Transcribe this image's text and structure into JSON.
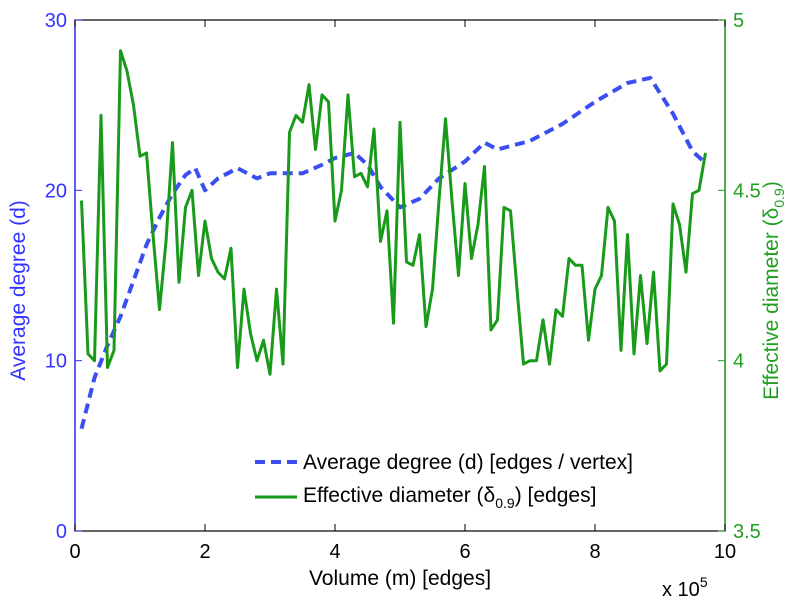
{
  "colors": {
    "left_axis": "#3333ff",
    "right_axis": "#22a022",
    "degree_line": "#3b4ef0",
    "diameter_line": "#1a9a1a",
    "frame": "#000000"
  },
  "chart_data": {
    "type": "line",
    "title": "",
    "xlabel": "Volume (m) [edges]",
    "x_multiplier": "x 10",
    "x_multiplier_exp": "5",
    "xlim": [
      0,
      10
    ],
    "x_ticks": [
      0,
      2,
      4,
      6,
      8,
      10
    ],
    "x_tick_labels": [
      "0",
      "2",
      "4",
      "6",
      "8",
      "10"
    ],
    "left_axis": {
      "label": "Average degree (d)",
      "ylim": [
        0,
        30
      ],
      "ticks": [
        0,
        10,
        20,
        30
      ],
      "tick_labels": [
        "0",
        "10",
        "20",
        "30"
      ]
    },
    "right_axis": {
      "label_main": "Effective diameter (δ",
      "label_sub": "0.9",
      "label_end": ")",
      "ylim": [
        3.5,
        5
      ],
      "ticks": [
        3.5,
        4,
        4.5,
        5
      ],
      "tick_labels": [
        "3.5",
        "4",
        "4.5",
        "5"
      ]
    },
    "legend": {
      "placement": "bottom-right",
      "entries": [
        {
          "main": "Average degree (d) [edges / vertex]",
          "sub": "",
          "tail": ""
        },
        {
          "main": "Effective diameter (δ",
          "sub": "0.9",
          "tail": ") [edges]"
        }
      ]
    },
    "series": [
      {
        "name": "Average degree (d) [edges / vertex]",
        "axis": "left",
        "style": "dashed",
        "x": [
          0.1,
          0.3,
          0.5,
          0.7,
          0.9,
          1.1,
          1.3,
          1.5,
          1.7,
          1.85,
          2.0,
          2.2,
          2.5,
          2.8,
          3.0,
          3.2,
          3.5,
          3.8,
          4.0,
          4.3,
          4.5,
          4.7,
          5.0,
          5.3,
          5.6,
          6.0,
          6.3,
          6.5,
          7.0,
          7.5,
          8.0,
          8.5,
          8.85,
          9.2,
          9.5,
          9.7
        ],
        "values": [
          6.0,
          9.0,
          10.9,
          12.6,
          14.7,
          16.8,
          18.4,
          19.8,
          20.9,
          21.3,
          20.0,
          20.7,
          21.3,
          20.7,
          21.0,
          21.0,
          21.0,
          21.5,
          21.9,
          22.2,
          21.5,
          20.2,
          19.0,
          19.5,
          20.7,
          21.7,
          22.8,
          22.4,
          22.9,
          23.9,
          25.2,
          26.3,
          26.6,
          24.5,
          22.3,
          21.6
        ]
      },
      {
        "name": "Effective diameter (δ0.9) [edges]",
        "axis": "right",
        "style": "solid",
        "x": [
          0.1,
          0.2,
          0.3,
          0.4,
          0.5,
          0.6,
          0.7,
          0.8,
          0.9,
          1.0,
          1.1,
          1.2,
          1.3,
          1.4,
          1.5,
          1.6,
          1.7,
          1.8,
          1.9,
          2.0,
          2.1,
          2.2,
          2.3,
          2.4,
          2.5,
          2.6,
          2.7,
          2.8,
          2.9,
          3.0,
          3.1,
          3.2,
          3.3,
          3.4,
          3.5,
          3.6,
          3.7,
          3.8,
          3.9,
          4.0,
          4.1,
          4.2,
          4.3,
          4.4,
          4.5,
          4.6,
          4.7,
          4.8,
          4.9,
          5.0,
          5.1,
          5.2,
          5.3,
          5.4,
          5.5,
          5.6,
          5.7,
          5.8,
          5.9,
          6.0,
          6.1,
          6.2,
          6.3,
          6.4,
          6.5,
          6.6,
          6.7,
          6.8,
          6.9,
          7.0,
          7.1,
          7.2,
          7.3,
          7.4,
          7.5,
          7.6,
          7.7,
          7.8,
          7.9,
          8.0,
          8.1,
          8.2,
          8.3,
          8.4,
          8.5,
          8.6,
          8.7,
          8.8,
          8.9,
          9.0,
          9.1,
          9.2,
          9.3,
          9.4,
          9.5,
          9.6,
          9.7
        ],
        "values": [
          4.47,
          4.02,
          4.0,
          4.72,
          3.98,
          4.03,
          4.91,
          4.85,
          4.75,
          4.6,
          4.61,
          4.37,
          4.15,
          4.35,
          4.64,
          4.23,
          4.45,
          4.5,
          4.25,
          4.41,
          4.3,
          4.26,
          4.24,
          4.33,
          3.98,
          4.21,
          4.08,
          4.0,
          4.06,
          3.96,
          4.21,
          3.99,
          4.67,
          4.72,
          4.7,
          4.81,
          4.62,
          4.78,
          4.76,
          4.41,
          4.5,
          4.78,
          4.54,
          4.55,
          4.51,
          4.68,
          4.35,
          4.44,
          4.11,
          4.7,
          4.29,
          4.28,
          4.37,
          4.1,
          4.21,
          4.47,
          4.71,
          4.47,
          4.25,
          4.52,
          4.3,
          4.4,
          4.57,
          4.09,
          4.12,
          4.45,
          4.44,
          4.21,
          3.99,
          4.0,
          4.0,
          4.12,
          3.99,
          4.15,
          4.13,
          4.3,
          4.28,
          4.28,
          4.06,
          4.21,
          4.25,
          4.45,
          4.41,
          4.03,
          4.37,
          4.02,
          4.25,
          4.05,
          4.26,
          3.97,
          3.99,
          4.46,
          4.4,
          4.26,
          4.49,
          4.5,
          4.61
        ]
      }
    ]
  }
}
